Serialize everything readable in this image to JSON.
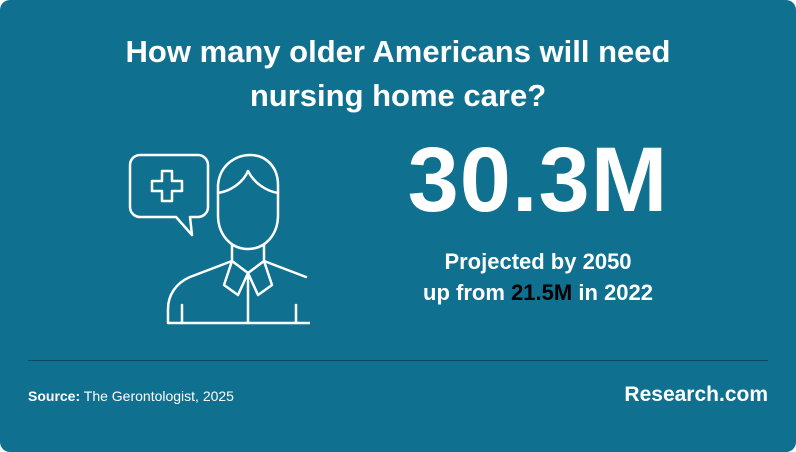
{
  "title": "How many older Americans will need nursing home care?",
  "stat": {
    "value": "30.3M",
    "line1": "Projected by 2050",
    "line2": {
      "before": "up from",
      "highlight": "21.5M",
      "after": "in 2022"
    }
  },
  "footer": {
    "source_label": "Source:",
    "source": "The Gerontologist, 2025",
    "brand": "Research.com"
  }
}
